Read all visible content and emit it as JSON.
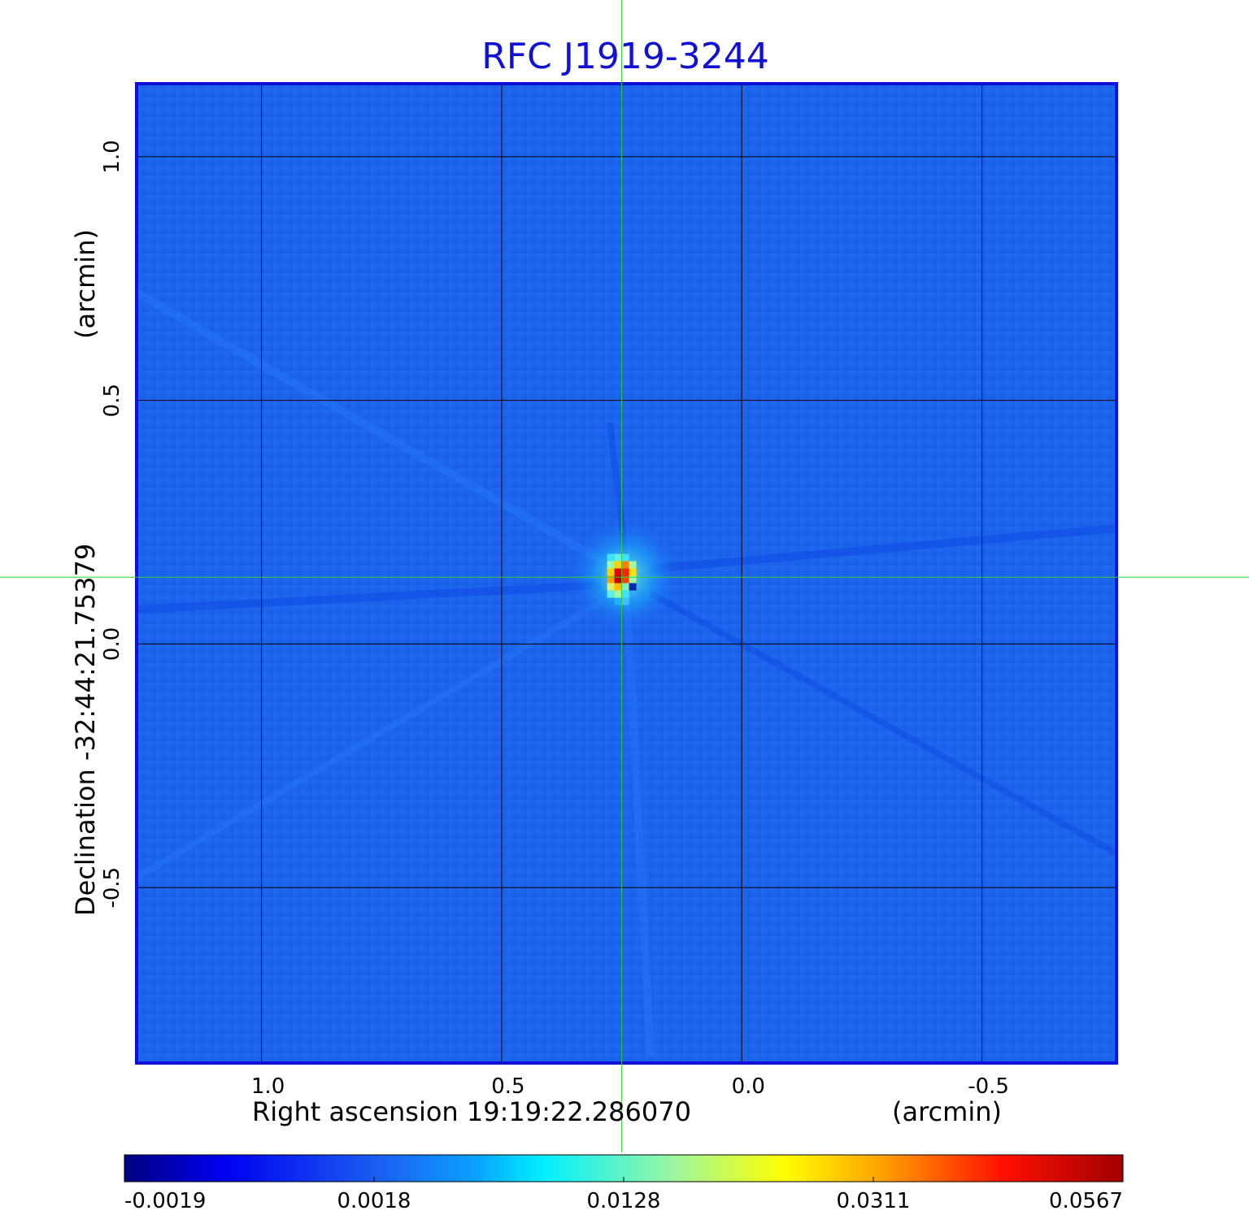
{
  "chart_data": {
    "type": "heatmap",
    "title": "RFC J1919-3244",
    "xlabel": "Right ascension  19:19:22.286070",
    "xunit": "(arcmin)",
    "ylabel": "Declination  -32:44:21.75379",
    "yunit": "(arcmin)",
    "xlim": [
      1.26,
      -0.78
    ],
    "ylim": [
      -0.86,
      1.15
    ],
    "x_ticks": [
      {
        "value": 1.0,
        "label": "1.0"
      },
      {
        "value": 0.5,
        "label": "0.5"
      },
      {
        "value": 0.0,
        "label": "0.0"
      },
      {
        "value": -0.5,
        "label": "-0.5"
      }
    ],
    "y_ticks": [
      {
        "value": 1.0,
        "label": "1.0"
      },
      {
        "value": 0.5,
        "label": "0.5"
      },
      {
        "value": 0.0,
        "label": "0.0"
      },
      {
        "value": -0.5,
        "label": "-0.5"
      }
    ],
    "grid": true,
    "crosshair": {
      "x": 0.25,
      "y": 0.137
    },
    "source": {
      "x": 0.25,
      "y": 0.14,
      "peak": 0.0567
    },
    "colorbar": {
      "orientation": "horizontal",
      "min": -0.0019,
      "max": 0.0567,
      "ticks": [
        {
          "value": -0.0019,
          "label": "-0.0019"
        },
        {
          "value": 0.0018,
          "label": "0.0018"
        },
        {
          "value": 0.0128,
          "label": "0.0128"
        },
        {
          "value": 0.0311,
          "label": "0.0311"
        },
        {
          "value": 0.0567,
          "label": "0.0567"
        }
      ]
    },
    "colors": {
      "title": "#1010d8",
      "frame": "#1010d8",
      "grid": "#000000",
      "crosshair": "#33cc33",
      "background_map": "#1c64ee"
    }
  }
}
